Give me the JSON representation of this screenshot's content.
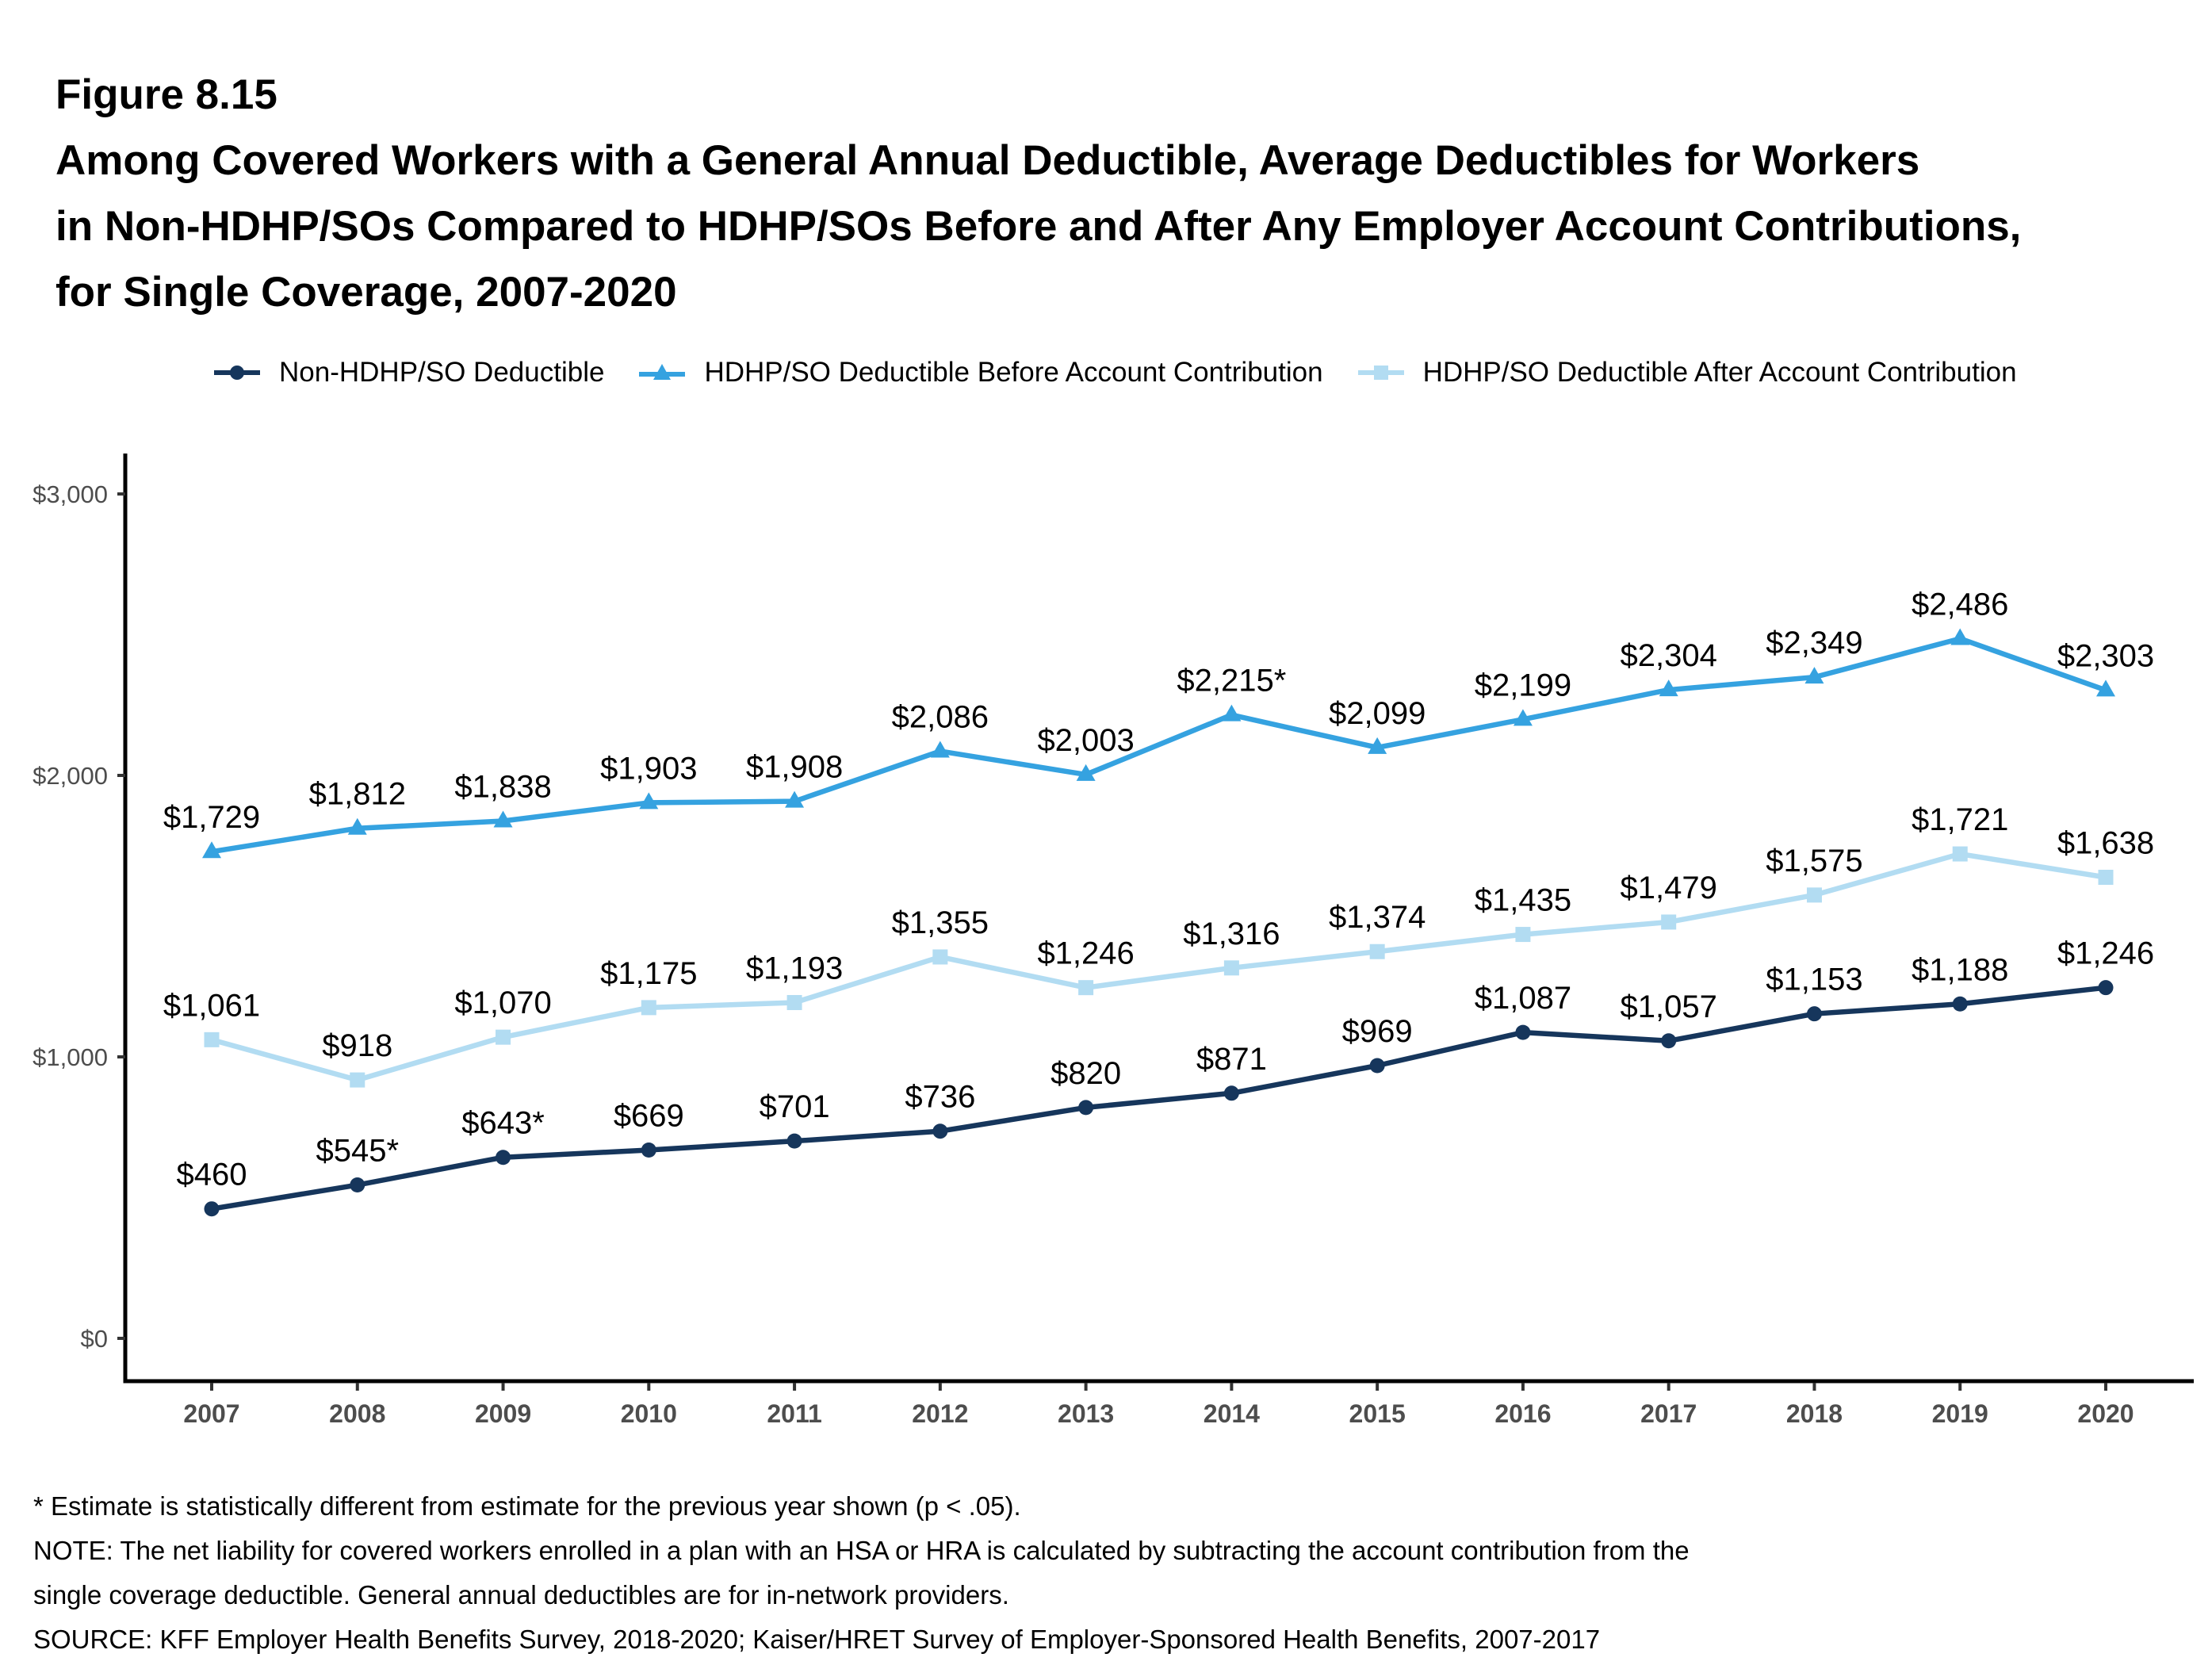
{
  "figure": {
    "number": "Figure 8.15",
    "title_lines": [
      "Among Covered Workers with a General Annual Deductible, Average Deductibles for Workers",
      "in Non-HDHP/SOs Compared to HDHP/SOs Before and After Any Employer Account Contributions,",
      "for Single Coverage, 2007-2020"
    ]
  },
  "legend": [
    {
      "label": "Non-HDHP/SO Deductible",
      "marker": "circle",
      "color": "#16365c"
    },
    {
      "label": "HDHP/SO Deductible Before Account Contribution",
      "marker": "triangle",
      "color": "#35a2e0"
    },
    {
      "label": "HDHP/SO Deductible After Account Contribution",
      "marker": "square",
      "color": "#b2dcf2"
    }
  ],
  "chart_data": {
    "type": "line",
    "title": "Among Covered Workers with a General Annual Deductible, Average Deductibles for Workers in Non-HDHP/SOs Compared to HDHP/SOs Before and After Any Employer Account Contributions, for Single Coverage, 2007-2020",
    "xlabel": "",
    "ylabel": "",
    "x": [
      "2007",
      "2008",
      "2009",
      "2010",
      "2011",
      "2012",
      "2013",
      "2014",
      "2015",
      "2016",
      "2017",
      "2018",
      "2019",
      "2020"
    ],
    "ylim": [
      0,
      3000
    ],
    "yticks": [
      0,
      1000,
      2000,
      3000
    ],
    "ytick_labels": [
      "$0",
      "$1,000",
      "$2,000",
      "$3,000"
    ],
    "grid": false,
    "legend_position": "top",
    "series": [
      {
        "name": "Non-HDHP/SO Deductible",
        "marker": "circle",
        "color": "#16365c",
        "values": [
          460,
          545,
          643,
          669,
          701,
          736,
          820,
          871,
          969,
          1087,
          1057,
          1153,
          1188,
          1246
        ],
        "labels": [
          "$460",
          "$545*",
          "$643*",
          "$669",
          "$701",
          "$736",
          "$820",
          "$871",
          "$969",
          "$1,087",
          "$1,057",
          "$1,153",
          "$1,188",
          "$1,246"
        ]
      },
      {
        "name": "HDHP/SO Deductible Before Account Contribution",
        "marker": "triangle",
        "color": "#35a2e0",
        "values": [
          1729,
          1812,
          1838,
          1903,
          1908,
          2086,
          2003,
          2215,
          2099,
          2199,
          2304,
          2349,
          2486,
          2303
        ],
        "labels": [
          "$1,729",
          "$1,812",
          "$1,838",
          "$1,903",
          "$1,908",
          "$2,086",
          "$2,003",
          "$2,215*",
          "$2,099",
          "$2,199",
          "$2,304",
          "$2,349",
          "$2,486",
          "$2,303"
        ]
      },
      {
        "name": "HDHP/SO Deductible After Account Contribution",
        "marker": "square",
        "color": "#b2dcf2",
        "values": [
          1061,
          918,
          1070,
          1175,
          1193,
          1355,
          1246,
          1316,
          1374,
          1435,
          1479,
          1575,
          1721,
          1638
        ],
        "labels": [
          "$1,061",
          "$918",
          "$1,070",
          "$1,175",
          "$1,193",
          "$1,355",
          "$1,246",
          "$1,316",
          "$1,374",
          "$1,435",
          "$1,479",
          "$1,575",
          "$1,721",
          "$1,638"
        ]
      }
    ]
  },
  "notes": [
    "* Estimate is statistically different from estimate for the previous year shown (p < .05).",
    "NOTE: The net liability for covered workers enrolled in a plan with an HSA or HRA is calculated by subtracting the account contribution from the",
    "single coverage deductible. General annual deductibles are for in-network providers.",
    "SOURCE: KFF Employer Health Benefits Survey, 2018-2020; Kaiser/HRET Survey of Employer-Sponsored Health Benefits, 2007-2017"
  ]
}
